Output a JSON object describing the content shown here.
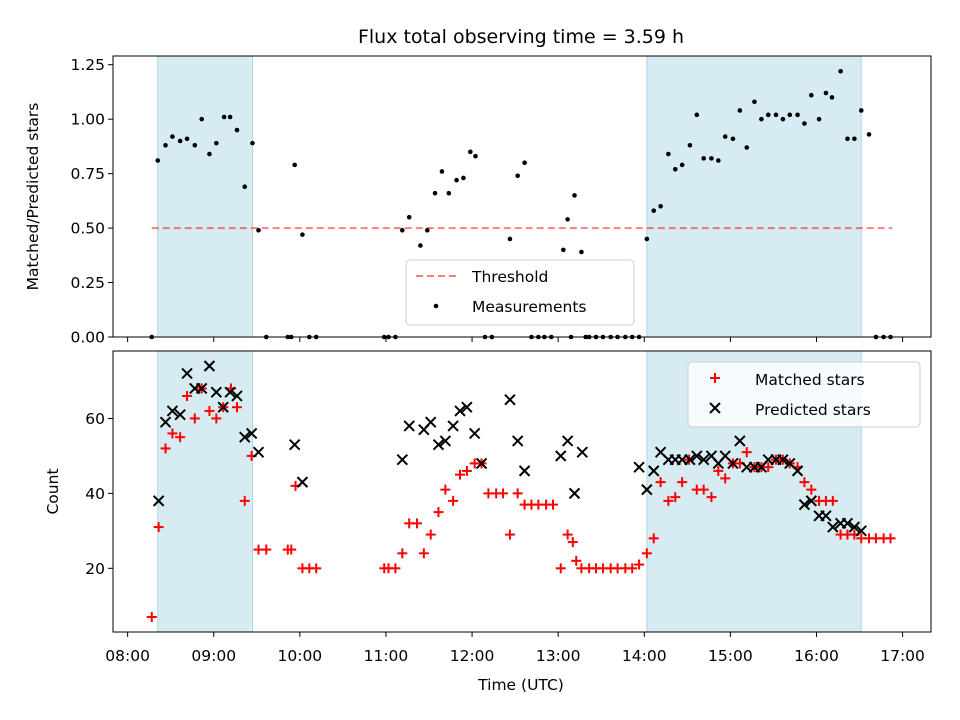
{
  "title": "Flux total observing time = 3.59 h",
  "xlabel": "Time (UTC)",
  "colors": {
    "band": "#add8e6",
    "threshold": "#ff0000",
    "measurement": "#000000",
    "matched": "#ff0000",
    "predicted": "#000000"
  },
  "x_ticks": [
    "08:00",
    "09:00",
    "10:00",
    "11:00",
    "12:00",
    "13:00",
    "14:00",
    "15:00",
    "16:00",
    "17:00"
  ],
  "x_tick_values": [
    8,
    9,
    10,
    11,
    12,
    13,
    14,
    15,
    16,
    17
  ],
  "chart_data": [
    {
      "type": "scatter",
      "ylabel": "Matched/Predicted stars",
      "xlim": [
        7.83,
        17.33
      ],
      "ylim": [
        0,
        1.29
      ],
      "yticks": [
        0.0,
        0.25,
        0.5,
        0.75,
        1.0,
        1.25
      ],
      "ytick_labels": [
        "0.00",
        "0.25",
        "0.50",
        "0.75",
        "1.00",
        "1.25"
      ],
      "legend_position": "lower-center",
      "shaded_intervals": [
        [
          8.35,
          9.45
        ],
        [
          14.03,
          16.52
        ]
      ],
      "threshold": {
        "name": "Threshold",
        "value": 0.5,
        "x_range": [
          8.28,
          16.88
        ]
      },
      "series": [
        {
          "name": "Measurements",
          "marker": "dot",
          "x": [
            8.28,
            8.35,
            8.44,
            8.52,
            8.61,
            8.69,
            8.78,
            8.86,
            8.95,
            9.03,
            9.12,
            9.19,
            9.27,
            9.36,
            9.45,
            9.52,
            9.61,
            9.86,
            9.9,
            9.94,
            10.03,
            10.11,
            10.19,
            10.98,
            11.03,
            11.11,
            11.19,
            11.27,
            11.4,
            11.48,
            11.57,
            11.65,
            11.73,
            11.82,
            11.9,
            11.98,
            12.04,
            12.15,
            12.23,
            12.44,
            12.53,
            12.61,
            12.69,
            12.77,
            12.84,
            12.92,
            13.06,
            13.11,
            13.15,
            13.19,
            13.27,
            13.32,
            13.36,
            13.44,
            13.52,
            13.61,
            13.69,
            13.78,
            13.86,
            13.94,
            14.03,
            14.11,
            14.19,
            14.28,
            14.36,
            14.44,
            14.53,
            14.61,
            14.69,
            14.78,
            14.86,
            14.94,
            15.03,
            15.11,
            15.19,
            15.28,
            15.36,
            15.44,
            15.53,
            15.61,
            15.69,
            15.78,
            15.86,
            15.94,
            16.03,
            16.11,
            16.18,
            16.28,
            16.36,
            16.44,
            16.52,
            16.61,
            16.69,
            16.78,
            16.86
          ],
          "y": [
            0.0,
            0.81,
            0.88,
            0.92,
            0.9,
            0.91,
            0.88,
            1.0,
            0.84,
            0.89,
            1.01,
            1.01,
            0.95,
            0.69,
            0.89,
            0.49,
            0.0,
            0.0,
            0.0,
            0.79,
            0.47,
            0.0,
            0.0,
            0.0,
            0.0,
            0.0,
            0.49,
            0.55,
            0.42,
            0.49,
            0.66,
            0.76,
            0.66,
            0.72,
            0.73,
            0.85,
            0.83,
            0.0,
            0.0,
            0.45,
            0.74,
            0.8,
            0.0,
            0.0,
            0.0,
            0.0,
            0.4,
            0.54,
            0.0,
            0.65,
            0.39,
            0.0,
            0.0,
            0.0,
            0.0,
            0.0,
            0.0,
            0.0,
            0.0,
            0.0,
            0.45,
            0.58,
            0.6,
            0.84,
            0.77,
            0.79,
            0.88,
            1.02,
            0.82,
            0.82,
            0.81,
            0.92,
            0.91,
            1.04,
            0.87,
            1.08,
            1.0,
            1.02,
            1.02,
            1.0,
            1.02,
            1.02,
            0.98,
            1.11,
            1.0,
            1.12,
            1.1,
            1.22,
            0.91,
            0.91,
            1.04,
            0.93,
            0.0,
            0.0,
            0.0
          ]
        }
      ]
    },
    {
      "type": "scatter",
      "ylabel": "Count",
      "xlim": [
        7.83,
        17.33
      ],
      "ylim": [
        3,
        78
      ],
      "yticks": [
        20,
        40,
        60
      ],
      "ytick_labels": [
        "20",
        "40",
        "60"
      ],
      "legend_position": "top-right",
      "shaded_intervals": [
        [
          8.35,
          9.45
        ],
        [
          14.03,
          16.52
        ]
      ],
      "series": [
        {
          "name": "Matched stars",
          "marker": "plus",
          "x": [
            8.28,
            8.36,
            8.44,
            8.52,
            8.61,
            8.69,
            8.78,
            8.86,
            8.95,
            9.03,
            9.11,
            9.2,
            9.27,
            9.36,
            9.44,
            9.52,
            9.61,
            9.86,
            9.9,
            9.95,
            10.03,
            10.11,
            10.19,
            10.98,
            11.03,
            11.11,
            11.19,
            11.27,
            11.36,
            11.44,
            11.52,
            11.61,
            11.69,
            11.78,
            11.86,
            11.94,
            12.03,
            12.11,
            12.19,
            12.28,
            12.36,
            12.44,
            12.53,
            12.61,
            12.69,
            12.77,
            12.86,
            12.94,
            13.03,
            13.11,
            13.17,
            13.21,
            13.27,
            13.36,
            13.44,
            13.52,
            13.61,
            13.69,
            13.78,
            13.86,
            13.94,
            14.03,
            14.11,
            14.19,
            14.28,
            14.36,
            14.44,
            14.52,
            14.61,
            14.69,
            14.78,
            14.86,
            14.94,
            15.03,
            15.11,
            15.19,
            15.28,
            15.36,
            15.44,
            15.53,
            15.61,
            15.69,
            15.78,
            15.86,
            15.94,
            16.03,
            16.11,
            16.19,
            16.28,
            16.36,
            16.44,
            16.52,
            16.61,
            16.69,
            16.78,
            16.86
          ],
          "y": [
            7,
            31,
            52,
            56,
            55,
            66,
            60,
            68,
            62,
            60,
            63,
            68,
            63,
            38,
            50,
            25,
            25,
            25,
            25,
            42,
            20,
            20,
            20,
            20,
            20,
            20,
            24,
            32,
            32,
            24,
            29,
            35,
            41,
            38,
            45,
            46,
            48,
            48,
            40,
            40,
            40,
            29,
            40,
            37,
            37,
            37,
            37,
            37,
            20,
            29,
            27,
            22,
            20,
            20,
            20,
            20,
            20,
            20,
            20,
            20,
            21,
            24,
            28,
            43,
            38,
            39,
            43,
            49,
            41,
            41,
            39,
            46,
            44,
            48,
            48,
            51,
            47,
            47,
            47,
            49,
            49,
            48,
            47,
            43,
            41,
            38,
            38,
            38,
            29,
            29,
            29,
            28,
            28,
            28,
            28,
            28
          ]
        },
        {
          "name": "Predicted stars",
          "marker": "x",
          "x": [
            8.36,
            8.44,
            8.52,
            8.61,
            8.69,
            8.78,
            8.86,
            8.95,
            9.03,
            9.11,
            9.19,
            9.27,
            9.36,
            9.44,
            9.52,
            9.94,
            10.03,
            11.19,
            11.27,
            11.44,
            11.52,
            11.61,
            11.69,
            11.78,
            11.86,
            11.94,
            12.03,
            12.11,
            12.44,
            12.53,
            12.61,
            13.03,
            13.11,
            13.19,
            13.28,
            13.94,
            14.03,
            14.11,
            14.19,
            14.28,
            14.36,
            14.44,
            14.53,
            14.61,
            14.69,
            14.78,
            14.86,
            14.94,
            15.03,
            15.11,
            15.19,
            15.28,
            15.36,
            15.44,
            15.53,
            15.61,
            15.69,
            15.78,
            15.86,
            15.94,
            16.03,
            16.11,
            16.19,
            16.28,
            16.36,
            16.44,
            16.52
          ],
          "y": [
            38,
            59,
            62,
            61,
            72,
            68,
            68,
            74,
            67,
            63,
            67,
            66,
            55,
            56,
            51,
            53,
            43,
            49,
            58,
            57,
            59,
            53,
            54,
            58,
            62,
            63,
            56,
            48,
            65,
            54,
            46,
            50,
            54,
            40,
            51,
            47,
            41,
            46,
            51,
            49,
            49,
            49,
            49,
            50,
            49,
            50,
            48,
            50,
            48,
            54,
            47,
            47,
            47,
            49,
            49,
            49,
            48,
            46,
            37,
            38,
            34,
            34,
            31,
            32,
            32,
            31,
            30
          ]
        }
      ]
    }
  ]
}
